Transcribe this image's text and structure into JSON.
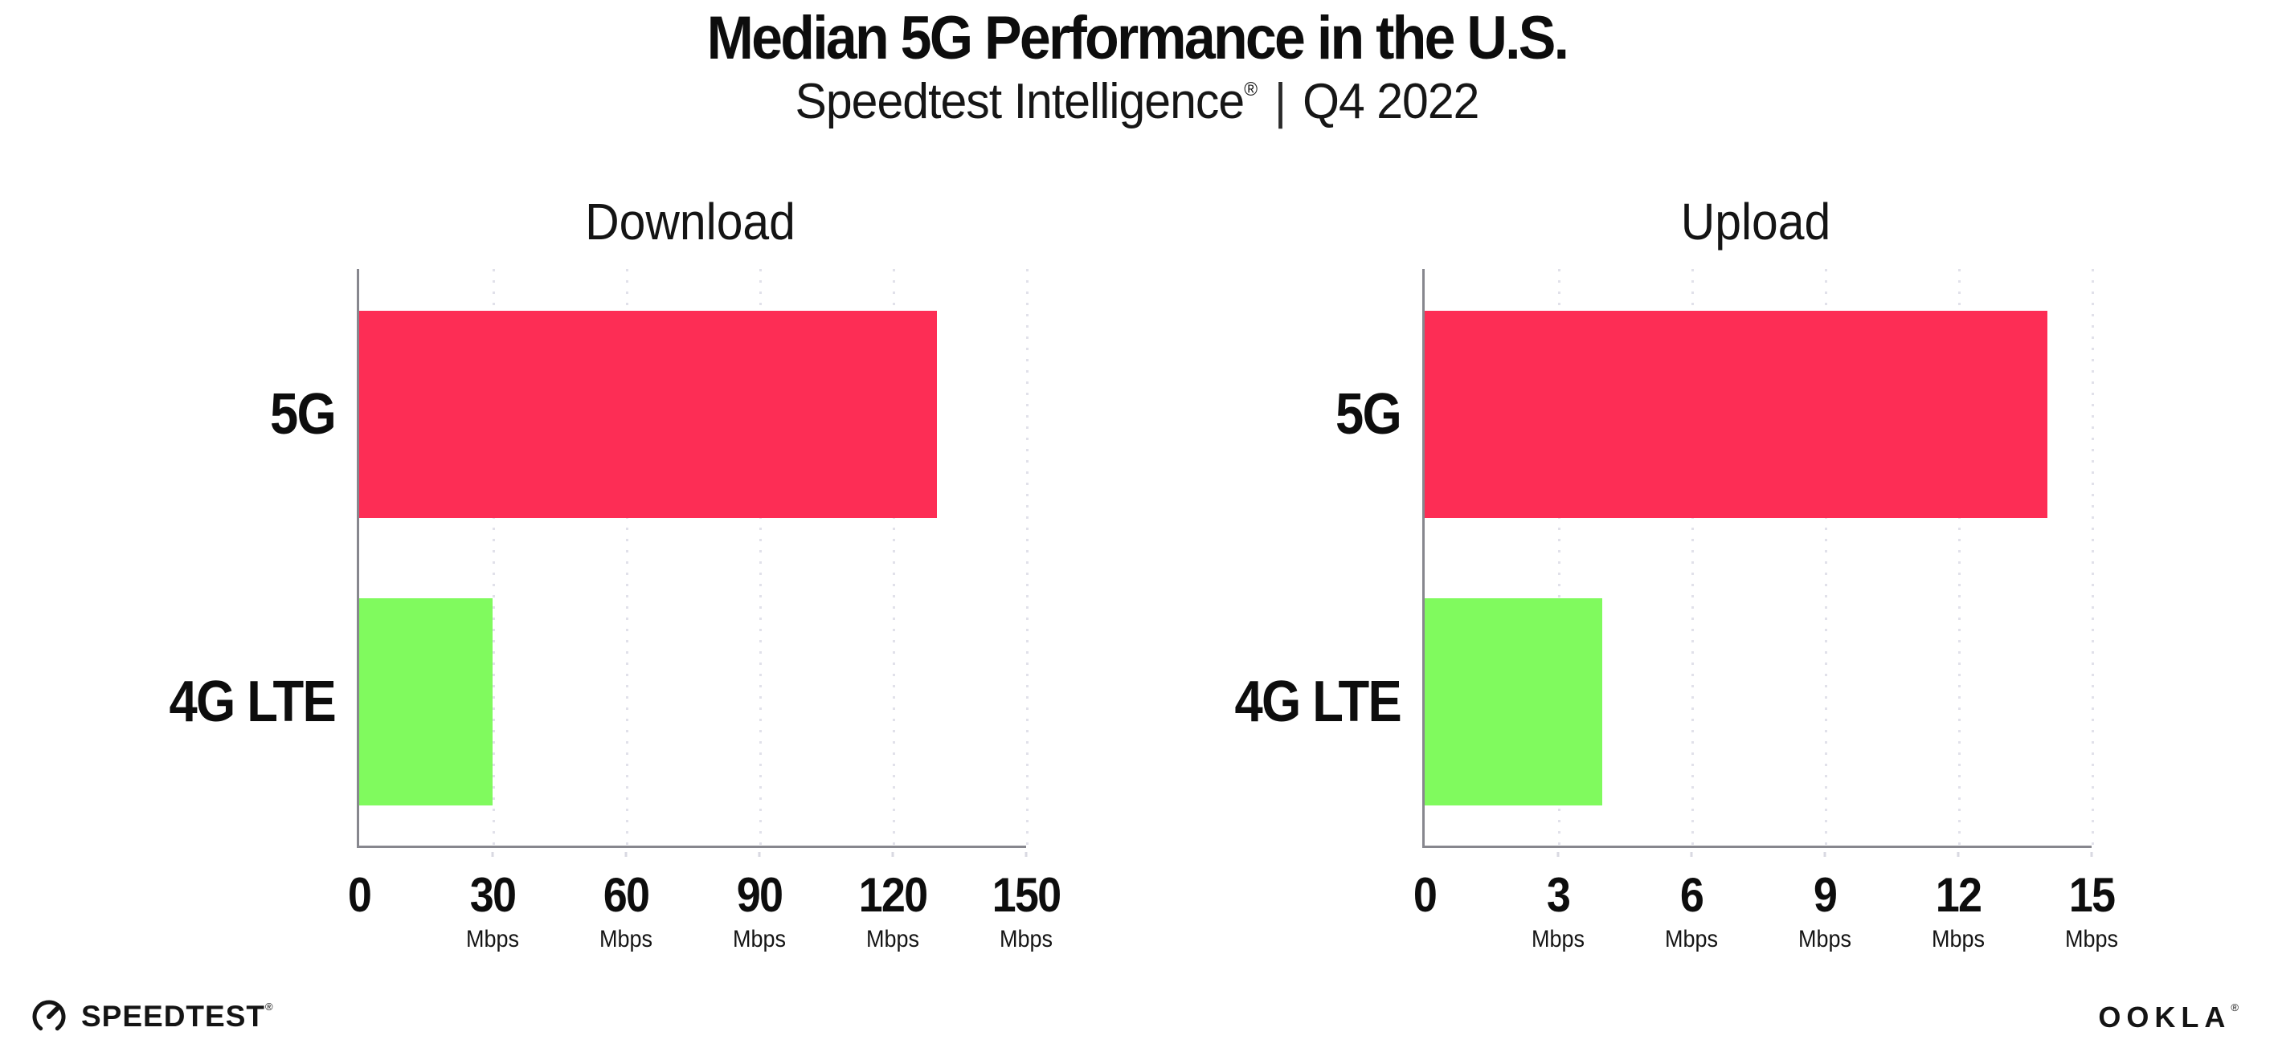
{
  "header": {
    "title": "Median 5G Performance in the U.S.",
    "subtitle_brand": "Speedtest Intelligence",
    "subtitle_reg": "®",
    "subtitle_divider": "|",
    "subtitle_period": "Q4 2022"
  },
  "chart_data": [
    {
      "type": "bar",
      "orientation": "horizontal",
      "title": "Download",
      "categories": [
        "5G",
        "4G LTE"
      ],
      "values": [
        130,
        30
      ],
      "unit": "Mbps",
      "xlim": [
        0,
        150
      ],
      "xticks": [
        0,
        30,
        60,
        90,
        120,
        150
      ],
      "bar_colors": [
        "#fd2d55",
        "#80fa5e"
      ],
      "grid": "vertical-dotted",
      "legend": "none"
    },
    {
      "type": "bar",
      "orientation": "horizontal",
      "title": "Upload",
      "categories": [
        "5G",
        "4G LTE"
      ],
      "values": [
        14,
        4
      ],
      "unit": "Mbps",
      "xlim": [
        0,
        15
      ],
      "xticks": [
        0,
        3,
        6,
        9,
        12,
        15
      ],
      "bar_colors": [
        "#fd2d55",
        "#80fa5e"
      ],
      "grid": "vertical-dotted",
      "legend": "none"
    }
  ],
  "footer": {
    "speedtest_wordmark": "SPEEDTEST",
    "speedtest_reg": "®",
    "ookla_wordmark": "OOKLA",
    "ookla_reg": "®"
  },
  "colors": {
    "bar_5g": "#fd2d55",
    "bar_4g_lte": "#80fa5e",
    "axis": "#87878e",
    "gridline": "#e1e1ea",
    "text": "#0d0d0d"
  }
}
